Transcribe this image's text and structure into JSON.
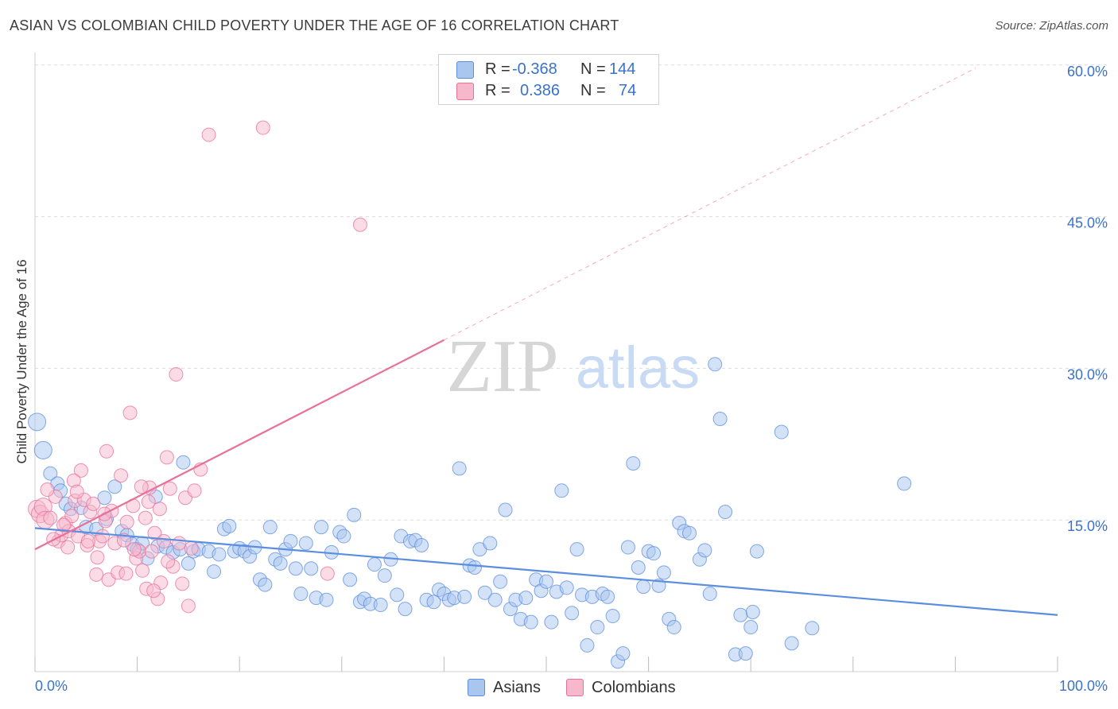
{
  "title": "ASIAN VS COLOMBIAN CHILD POVERTY UNDER THE AGE OF 16 CORRELATION CHART",
  "source": "Source: ZipAtlas.com",
  "watermark": {
    "zip": "ZIP",
    "atlas": "atlas"
  },
  "legend": {
    "r_label": "R =",
    "n_label": "N =",
    "asians": {
      "r": "-0.368",
      "n": "144",
      "color": "#a9c6ef"
    },
    "colombians": {
      "r": "0.386",
      "n": "74",
      "color": "#f7b8cb"
    }
  },
  "bottom_legend": {
    "asians": "Asians",
    "colombians": "Colombians"
  },
  "chart_data": {
    "type": "scatter",
    "ylabel": "Child Poverty Under the Age of 16",
    "x_tick_labels": [
      "0.0%",
      "100.0%"
    ],
    "y_tick_labels": [
      "15.0%",
      "30.0%",
      "45.0%",
      "60.0%"
    ],
    "xlim": [
      0,
      100
    ],
    "ylim": [
      0,
      60
    ],
    "grid": true,
    "legend_position": "top-center",
    "series": [
      {
        "name": "Asians",
        "color": "#5b8ee0",
        "fill": "#a9c6ef",
        "trend": {
          "x": [
            0,
            100
          ],
          "y": [
            14.2,
            5.6
          ],
          "style": "solid"
        },
        "points": [
          [
            0.2,
            24.7
          ],
          [
            0.8,
            21.9
          ],
          [
            1.5,
            19.6
          ],
          [
            2.2,
            18.6
          ],
          [
            2.5,
            17.9
          ],
          [
            3,
            16.6
          ],
          [
            3.5,
            16.1
          ],
          [
            4.5,
            16.2
          ],
          [
            5,
            14.3
          ],
          [
            6,
            14.1
          ],
          [
            6.8,
            17.2
          ],
          [
            7,
            15.1
          ],
          [
            7.8,
            18.3
          ],
          [
            8.5,
            13.9
          ],
          [
            9,
            13.5
          ],
          [
            9.5,
            12.6
          ],
          [
            10,
            12.1
          ],
          [
            10.5,
            12.7
          ],
          [
            11,
            11.2
          ],
          [
            11.8,
            17.3
          ],
          [
            12,
            12.4
          ],
          [
            12.8,
            12.3
          ],
          [
            13.5,
            11.8
          ],
          [
            14.2,
            12.1
          ],
          [
            14.5,
            20.7
          ],
          [
            15,
            10.7
          ],
          [
            15.5,
            11.9
          ],
          [
            16,
            12.1
          ],
          [
            17,
            11.9
          ],
          [
            17.5,
            9.9
          ],
          [
            18,
            11.6
          ],
          [
            18.5,
            14.1
          ],
          [
            19,
            14.4
          ],
          [
            19.5,
            11.9
          ],
          [
            20,
            12.2
          ],
          [
            20.5,
            11.9
          ],
          [
            21,
            11.4
          ],
          [
            21.5,
            12.3
          ],
          [
            22,
            9.1
          ],
          [
            22.5,
            8.6
          ],
          [
            23,
            14.3
          ],
          [
            23.5,
            11.1
          ],
          [
            24,
            10.7
          ],
          [
            24.5,
            12.1
          ],
          [
            25,
            12.9
          ],
          [
            25.5,
            10.2
          ],
          [
            26,
            7.7
          ],
          [
            26.5,
            12.7
          ],
          [
            27,
            10.2
          ],
          [
            27.5,
            7.3
          ],
          [
            28,
            14.3
          ],
          [
            28.5,
            7.1
          ],
          [
            29,
            11.8
          ],
          [
            29.8,
            13.8
          ],
          [
            30.2,
            13.4
          ],
          [
            30.8,
            9.1
          ],
          [
            31.2,
            15.5
          ],
          [
            31.8,
            6.9
          ],
          [
            32.2,
            7.2
          ],
          [
            32.8,
            6.7
          ],
          [
            33.2,
            10.6
          ],
          [
            33.8,
            6.6
          ],
          [
            34.2,
            9.5
          ],
          [
            34.8,
            11.1
          ],
          [
            35.4,
            7.6
          ],
          [
            35.8,
            13.4
          ],
          [
            36.2,
            6.2
          ],
          [
            36.7,
            12.9
          ],
          [
            37.2,
            13.0
          ],
          [
            37.8,
            12.5
          ],
          [
            38.3,
            7.1
          ],
          [
            39.0,
            6.9
          ],
          [
            39.5,
            8.1
          ],
          [
            40.0,
            7.7
          ],
          [
            40.5,
            7.1
          ],
          [
            41.0,
            7.3
          ],
          [
            41.5,
            20.1
          ],
          [
            42.0,
            7.4
          ],
          [
            42.5,
            10.5
          ],
          [
            43.0,
            10.3
          ],
          [
            43.5,
            12.1
          ],
          [
            44.0,
            7.8
          ],
          [
            44.5,
            12.7
          ],
          [
            45.0,
            7.1
          ],
          [
            45.5,
            8.9
          ],
          [
            46.0,
            16.0
          ],
          [
            46.5,
            6.2
          ],
          [
            47.0,
            7.1
          ],
          [
            47.5,
            5.2
          ],
          [
            48.0,
            7.3
          ],
          [
            48.5,
            4.9
          ],
          [
            49.0,
            9.1
          ],
          [
            49.5,
            8.0
          ],
          [
            50.0,
            8.9
          ],
          [
            50.5,
            4.9
          ],
          [
            51.0,
            7.9
          ],
          [
            51.5,
            17.9
          ],
          [
            52.0,
            8.3
          ],
          [
            52.5,
            5.8
          ],
          [
            53.0,
            12.1
          ],
          [
            53.5,
            7.6
          ],
          [
            54.0,
            2.6
          ],
          [
            54.5,
            7.4
          ],
          [
            55.0,
            4.4
          ],
          [
            55.5,
            7.7
          ],
          [
            56.0,
            7.4
          ],
          [
            56.5,
            5.5
          ],
          [
            57.0,
            1.0
          ],
          [
            57.5,
            1.8
          ],
          [
            58.0,
            12.3
          ],
          [
            58.5,
            20.6
          ],
          [
            59.0,
            10.3
          ],
          [
            59.5,
            8.4
          ],
          [
            60.0,
            11.9
          ],
          [
            60.5,
            11.7
          ],
          [
            61.0,
            8.5
          ],
          [
            61.5,
            9.8
          ],
          [
            62.0,
            5.2
          ],
          [
            62.5,
            4.4
          ],
          [
            63.0,
            14.7
          ],
          [
            63.5,
            13.9
          ],
          [
            64.0,
            13.7
          ],
          [
            65.0,
            11.1
          ],
          [
            65.5,
            12.0
          ],
          [
            66.0,
            7.7
          ],
          [
            66.5,
            30.4
          ],
          [
            67.0,
            25.0
          ],
          [
            67.5,
            15.8
          ],
          [
            68.5,
            1.7
          ],
          [
            69.0,
            5.6
          ],
          [
            69.5,
            1.8
          ],
          [
            70.0,
            4.4
          ],
          [
            70.2,
            5.9
          ],
          [
            70.6,
            11.9
          ],
          [
            73.0,
            23.7
          ],
          [
            74.0,
            2.8
          ],
          [
            76.0,
            4.3
          ],
          [
            85.0,
            18.6
          ]
        ]
      },
      {
        "name": "Colombians",
        "color": "#e8709a",
        "fill": "#f7b8cb",
        "trend": {
          "x": [
            0,
            40
          ],
          "y": [
            12.1,
            32.8
          ],
          "style": "solid"
        },
        "trend_extended": {
          "x": [
            40,
            92
          ],
          "y": [
            32.8,
            59.7
          ],
          "style": "dashed"
        },
        "points": [
          [
            0.2,
            16.1
          ],
          [
            0.5,
            15.6
          ],
          [
            0.8,
            16.3
          ],
          [
            1.0,
            15.0
          ],
          [
            1.5,
            15.2
          ],
          [
            2.0,
            17.3
          ],
          [
            2.3,
            12.9
          ],
          [
            2.6,
            13.5
          ],
          [
            3.0,
            14.7
          ],
          [
            3.3,
            13.9
          ],
          [
            3.6,
            15.4
          ],
          [
            3.9,
            16.9
          ],
          [
            4.2,
            13.4
          ],
          [
            4.5,
            19.9
          ],
          [
            4.8,
            17.0
          ],
          [
            5.1,
            12.5
          ],
          [
            5.4,
            15.8
          ],
          [
            5.7,
            16.6
          ],
          [
            6.0,
            9.6
          ],
          [
            6.3,
            12.9
          ],
          [
            6.6,
            13.4
          ],
          [
            6.9,
            14.9
          ],
          [
            7.2,
            9.1
          ],
          [
            7.5,
            15.9
          ],
          [
            7.8,
            12.7
          ],
          [
            8.1,
            9.8
          ],
          [
            8.4,
            19.4
          ],
          [
            8.7,
            13.0
          ],
          [
            9.0,
            14.8
          ],
          [
            9.3,
            25.6
          ],
          [
            9.6,
            16.4
          ],
          [
            9.9,
            11.2
          ],
          [
            10.2,
            11.9
          ],
          [
            10.5,
            10.0
          ],
          [
            10.8,
            15.2
          ],
          [
            11.1,
            16.8
          ],
          [
            11.4,
            11.9
          ],
          [
            11.7,
            13.7
          ],
          [
            12.0,
            7.2
          ],
          [
            12.3,
            8.8
          ],
          [
            12.6,
            12.9
          ],
          [
            12.9,
            21.2
          ],
          [
            13.2,
            18.1
          ],
          [
            13.5,
            10.4
          ],
          [
            13.8,
            29.4
          ],
          [
            14.1,
            12.7
          ],
          [
            14.4,
            8.7
          ],
          [
            14.7,
            17.2
          ],
          [
            15.0,
            6.5
          ],
          [
            15.6,
            17.9
          ],
          [
            16.2,
            20.0
          ],
          [
            17.0,
            53.1
          ],
          [
            22.3,
            53.8
          ],
          [
            31.8,
            44.2
          ],
          [
            10.9,
            8.2
          ],
          [
            7.0,
            21.8
          ],
          [
            11.2,
            18.2
          ],
          [
            13.0,
            10.9
          ],
          [
            5.2,
            12.9
          ],
          [
            3.8,
            18.9
          ],
          [
            1.2,
            18.0
          ],
          [
            2.8,
            14.5
          ],
          [
            4.1,
            17.8
          ],
          [
            6.8,
            15.6
          ],
          [
            9.7,
            12.1
          ],
          [
            12.2,
            16.1
          ],
          [
            8.9,
            9.7
          ],
          [
            11.6,
            8.0
          ],
          [
            1.8,
            13.1
          ],
          [
            28.6,
            9.7
          ],
          [
            15.3,
            12.2
          ],
          [
            6.1,
            11.3
          ],
          [
            10.4,
            18.3
          ],
          [
            3.2,
            12.3
          ]
        ]
      }
    ]
  }
}
